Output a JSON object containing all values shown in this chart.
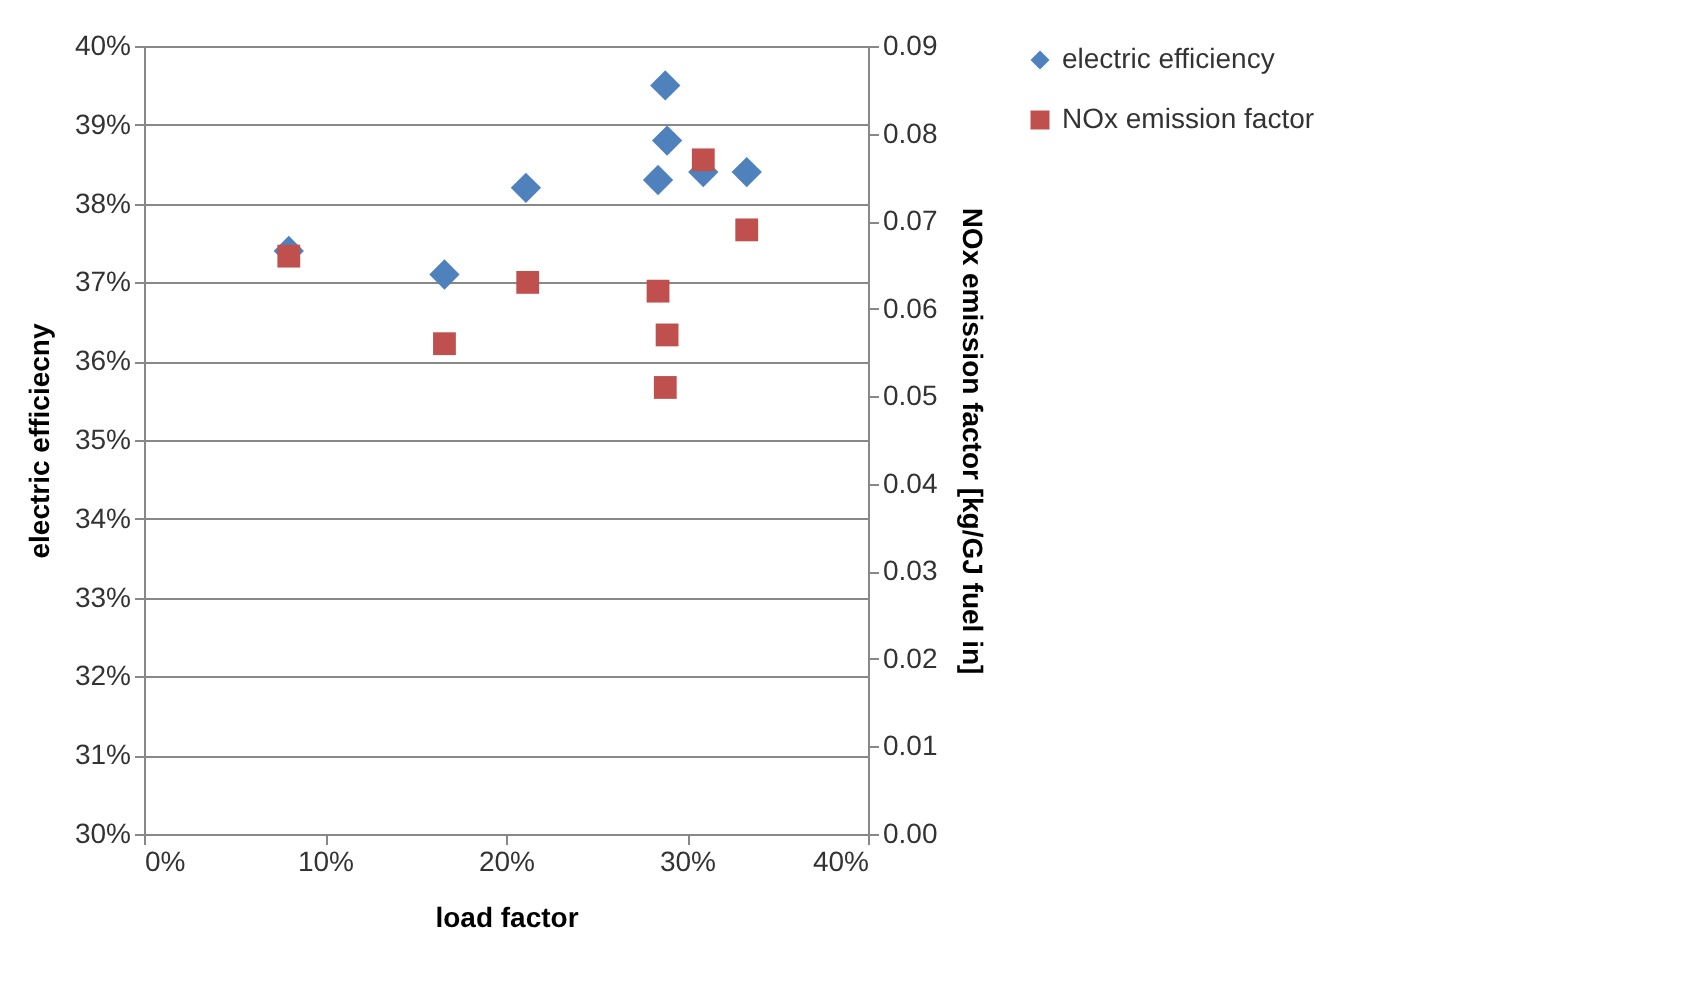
{
  "chart_data": {
    "type": "scatter",
    "xlabel": "load factor",
    "ylabel": "electric efficiecny",
    "y2label": "NOx emission factor [kg/GJ fuel in]",
    "x": [
      8.0,
      16.6,
      21.1,
      28.4,
      28.8,
      28.9,
      30.9,
      33.3
    ],
    "series": [
      {
        "name": "electric efficiency",
        "color": "#4f81bd",
        "marker": "diamond",
        "values": [
          37.4,
          37.1,
          38.2,
          38.3,
          39.5,
          38.8,
          38.4,
          38.4
        ]
      },
      {
        "name": "NOx emission factor",
        "color": "#c0504d",
        "marker": "square",
        "axis": "y2",
        "x": [
          8.0,
          16.6,
          21.2,
          28.4,
          28.9,
          28.8,
          30.9,
          33.3
        ],
        "values": [
          0.066,
          0.056,
          0.063,
          0.062,
          0.057,
          0.051,
          0.077,
          0.069
        ]
      }
    ],
    "xlim": [
      0,
      40
    ],
    "xticks": [
      {
        "value": 0,
        "label": "0%"
      },
      {
        "value": 10,
        "label": "10%"
      },
      {
        "value": 20,
        "label": "20%"
      },
      {
        "value": 30,
        "label": "30%"
      },
      {
        "value": 40,
        "label": "40%"
      }
    ],
    "ylim": [
      30,
      40
    ],
    "yticks": [
      {
        "value": 30,
        "label": "30%"
      },
      {
        "value": 31,
        "label": "31%"
      },
      {
        "value": 32,
        "label": "32%"
      },
      {
        "value": 33,
        "label": "33%"
      },
      {
        "value": 34,
        "label": "34%"
      },
      {
        "value": 35,
        "label": "35%"
      },
      {
        "value": 36,
        "label": "36%"
      },
      {
        "value": 37,
        "label": "37%"
      },
      {
        "value": 38,
        "label": "38%"
      },
      {
        "value": 39,
        "label": "39%"
      },
      {
        "value": 40,
        "label": "40%"
      }
    ],
    "y2lim": [
      0,
      0.09
    ],
    "y2ticks": [
      {
        "value": 0,
        "label": "0.00"
      },
      {
        "value": 0.01,
        "label": "0.01"
      },
      {
        "value": 0.02,
        "label": "0.02"
      },
      {
        "value": 0.03,
        "label": "0.03"
      },
      {
        "value": 0.04,
        "label": "0.04"
      },
      {
        "value": 0.05,
        "label": "0.05"
      },
      {
        "value": 0.06,
        "label": "0.06"
      },
      {
        "value": 0.07,
        "label": "0.07"
      },
      {
        "value": 0.08,
        "label": "0.08"
      },
      {
        "value": 0.09,
        "label": "0.09"
      }
    ],
    "grid": "y",
    "legend": "right"
  }
}
